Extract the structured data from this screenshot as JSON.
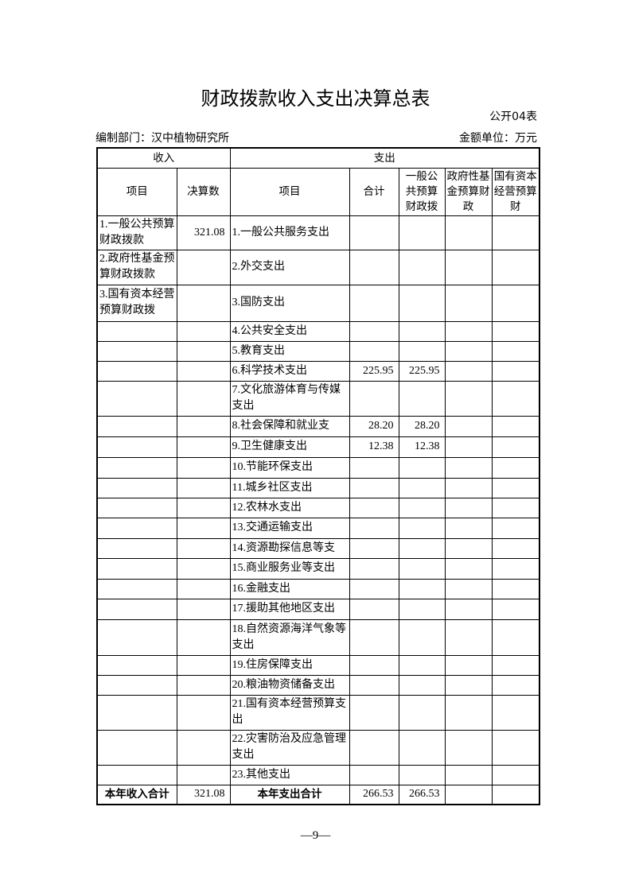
{
  "header": {
    "title": "财政拨款收入支出决算总表",
    "form_no": "公开04表",
    "department": "编制部门：汉中植物研究所",
    "unit": "金额单位：万元"
  },
  "table": {
    "group_headers": [
      "收入",
      "支出"
    ],
    "columns": [
      "项目",
      "决算数",
      "项目",
      "合计",
      "一般公共预算财政拨",
      "政府性基金预算财政",
      "国有资本经营预算财"
    ],
    "rows": [
      [
        "1.一般公共预算财政拨款",
        "321.08",
        "1.一般公共服务支出",
        null,
        null,
        null,
        null
      ],
      [
        "2.政府性基金预算财政拨款",
        null,
        "2.外交支出",
        null,
        null,
        null,
        null
      ],
      [
        "3.国有资本经营预算财政拨",
        null,
        "3.国防支出",
        null,
        null,
        null,
        null
      ],
      [
        null,
        null,
        "4.公共安全支出",
        null,
        null,
        null,
        null
      ],
      [
        null,
        null,
        "5.教育支出",
        null,
        null,
        null,
        null
      ],
      [
        null,
        null,
        "6.科学技术支出",
        "225.95",
        "225.95",
        null,
        null
      ],
      [
        null,
        null,
        "7.文化旅游体育与传媒支出",
        null,
        null,
        null,
        null
      ],
      [
        null,
        null,
        "8.社会保障和就业支",
        "28.20",
        "28.20",
        null,
        null
      ],
      [
        null,
        null,
        "9.卫生健康支出",
        "12.38",
        "12.38",
        null,
        null
      ],
      [
        null,
        null,
        "10.节能环保支出",
        null,
        null,
        null,
        null
      ],
      [
        null,
        null,
        "11.城乡社区支出",
        null,
        null,
        null,
        null
      ],
      [
        null,
        null,
        "12.农林水支出",
        null,
        null,
        null,
        null
      ],
      [
        null,
        null,
        "13.交通运输支出",
        null,
        null,
        null,
        null
      ],
      [
        null,
        null,
        "14.资源勘探信息等支",
        null,
        null,
        null,
        null
      ],
      [
        null,
        null,
        "15.商业服务业等支出",
        null,
        null,
        null,
        null
      ],
      [
        null,
        null,
        "16.金融支出",
        null,
        null,
        null,
        null
      ],
      [
        null,
        null,
        "17.援助其他地区支出",
        null,
        null,
        null,
        null
      ],
      [
        null,
        null,
        "18.自然资源海洋气象等支出",
        null,
        null,
        null,
        null
      ],
      [
        null,
        null,
        "19.住房保障支出",
        null,
        null,
        null,
        null
      ],
      [
        null,
        null,
        "20.粮油物资储备支出",
        null,
        null,
        null,
        null
      ],
      [
        null,
        null,
        "21.国有资本经营预算支出",
        null,
        null,
        null,
        null
      ],
      [
        null,
        null,
        "22.灾害防治及应急管理支出",
        null,
        null,
        null,
        null
      ],
      [
        null,
        null,
        "23.其他支出",
        null,
        null,
        null,
        null
      ]
    ],
    "total": [
      "本年收入合计",
      "321.08",
      "本年支出合计",
      "266.53",
      "266.53",
      null,
      null
    ]
  },
  "footer": {
    "page": "—9—"
  }
}
